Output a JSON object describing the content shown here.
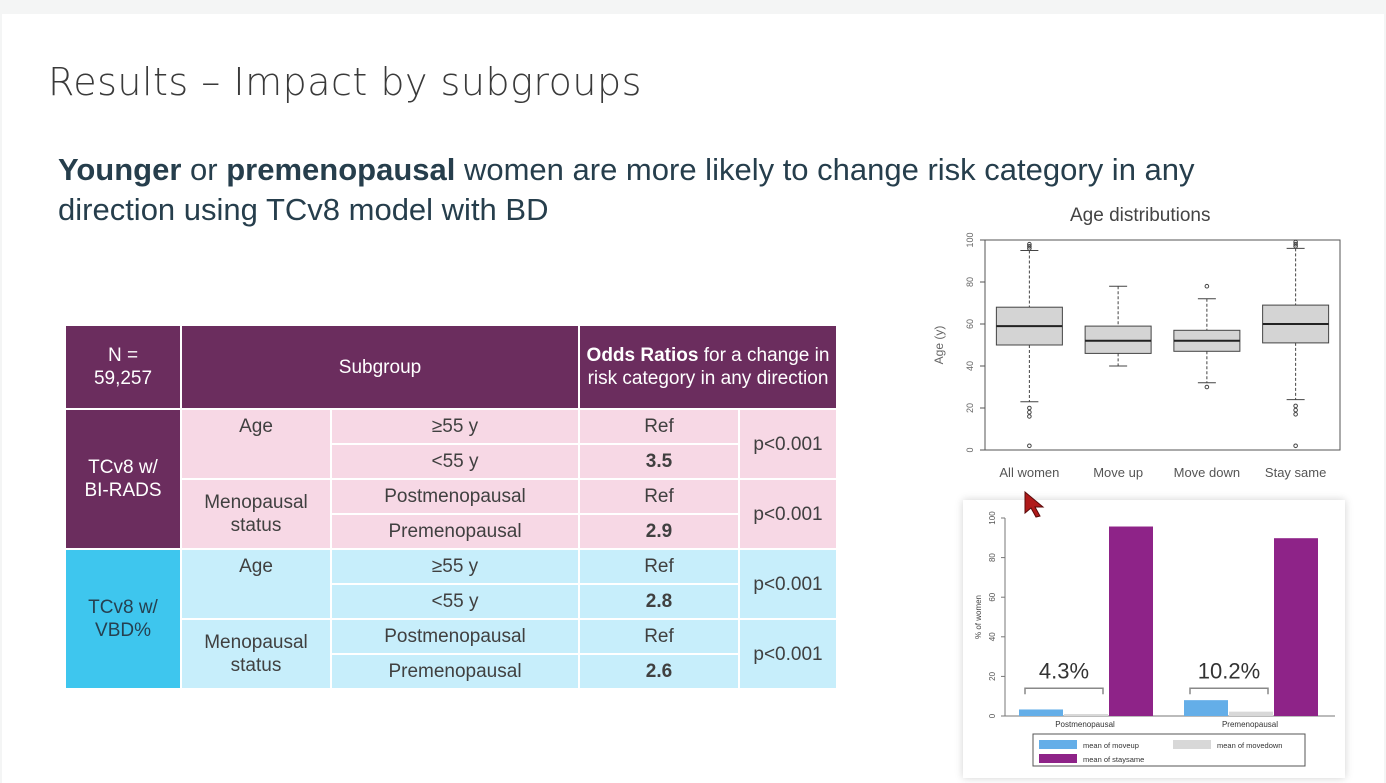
{
  "slide": {
    "title": "Results – Impact by subgroups",
    "headline": {
      "bold1": "Younger",
      "text1": " or ",
      "bold2": "premenopausal",
      "text2": " women are more likely to change risk category in any direction using TCv8 model with BD"
    }
  },
  "table": {
    "header": {
      "n_label": "N =",
      "n_value": "59,257",
      "subgroup": "Subgroup",
      "or_bold": "Odds Ratios",
      "or_rest": " for a change in risk category in any direction"
    },
    "groups": [
      {
        "label_line1": "TCv8 w/",
        "label_line2": "BI-RADS",
        "age_label": "Age",
        "meno_label_line1": "Menopausal",
        "meno_label_line2": "status",
        "rows": [
          {
            "subgroup": "≥55 y",
            "or": "Ref"
          },
          {
            "subgroup": "<55 y",
            "or": "3.5"
          },
          {
            "subgroup": "Postmenopausal",
            "or": "Ref"
          },
          {
            "subgroup": "Premenopausal",
            "or": "2.9"
          }
        ],
        "p_age": "p<0.001",
        "p_meno": "p<0.001"
      },
      {
        "label_line1": "TCv8 w/",
        "label_line2": "VBD%",
        "age_label": "Age",
        "meno_label_line1": "Menopausal",
        "meno_label_line2": "status",
        "rows": [
          {
            "subgroup": "≥55 y",
            "or": "Ref"
          },
          {
            "subgroup": "<55 y",
            "or": "2.8"
          },
          {
            "subgroup": "Postmenopausal",
            "or": "Ref"
          },
          {
            "subgroup": "Premenopausal",
            "or": "2.6"
          }
        ],
        "p_age": "p<0.001",
        "p_meno": "p<0.001"
      }
    ]
  },
  "colors": {
    "pink_side": "#6b2d5e",
    "pink_row": "#f7d8e5",
    "blue_side": "#3ec6ee",
    "blue_row": "#c7eefb",
    "bar_up": "#64aee8",
    "bar_down": "#d8d8d8",
    "bar_same": "#8e2388"
  },
  "chart_data": [
    {
      "type": "box",
      "title": "Age distributions",
      "ylabel": "Age (y)",
      "ylim": [
        0,
        100
      ],
      "yticks": [
        0,
        20,
        40,
        60,
        80,
        100
      ],
      "categories": [
        "All women",
        "Move up",
        "Move down",
        "Stay same"
      ],
      "boxes": [
        {
          "whisker_low": 23,
          "q1": 50,
          "median": 59,
          "q3": 68,
          "whisker_high": 95,
          "outliers_low": [
            20,
            18,
            16,
            2
          ],
          "outliers_high": [
            96,
            97,
            98
          ]
        },
        {
          "whisker_low": 40,
          "q1": 46,
          "median": 52,
          "q3": 59,
          "whisker_high": 78,
          "outliers_low": [],
          "outliers_high": []
        },
        {
          "whisker_low": 32,
          "q1": 47,
          "median": 52,
          "q3": 57,
          "whisker_high": 72,
          "outliers_low": [
            30
          ],
          "outliers_high": [
            78
          ]
        },
        {
          "whisker_low": 24,
          "q1": 51,
          "median": 60,
          "q3": 69,
          "whisker_high": 96,
          "outliers_low": [
            21,
            19,
            17,
            2
          ],
          "outliers_high": [
            97,
            98,
            99
          ]
        }
      ],
      "grid": false
    },
    {
      "type": "bar",
      "ylabel": "% of women",
      "ylim": [
        0,
        100
      ],
      "yticks": [
        0,
        20,
        40,
        60,
        80,
        100
      ],
      "categories": [
        "Postmenopausal",
        "Premenopausal"
      ],
      "series": [
        {
          "name": "mean of moveup",
          "values": [
            3.3,
            8.0
          ]
        },
        {
          "name": "mean of movedown",
          "values": [
            1.0,
            2.2
          ]
        },
        {
          "name": "mean of staysame",
          "values": [
            95.7,
            89.8
          ]
        }
      ],
      "annotations": [
        "4.3%",
        "10.2%"
      ],
      "legend_position": "bottom"
    }
  ]
}
